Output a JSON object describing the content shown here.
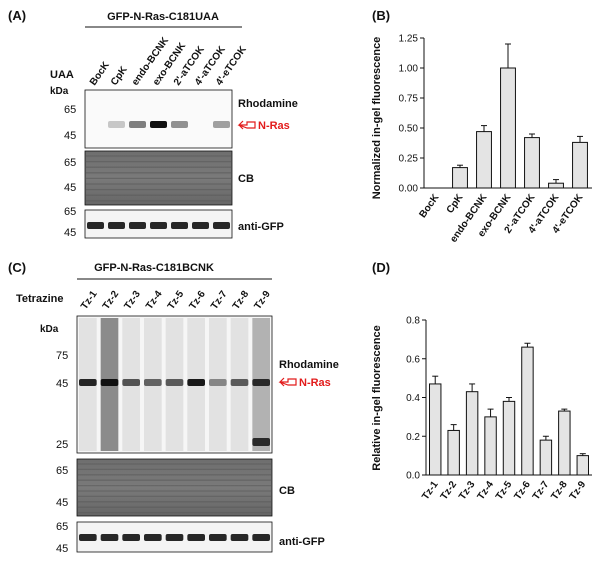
{
  "panel_a": {
    "label": "(A)",
    "title": "GFP-N-Ras-C181UAA",
    "row_label": "UAA",
    "lanes": [
      "BocK",
      "CpK",
      "endo-BCNK",
      "exo-BCNK",
      "2'-aTCOK",
      "4'-aTCOK",
      "4'-eTCOK"
    ],
    "kda_label": "kDa",
    "blot1_markers": [
      "65",
      "45"
    ],
    "blot2_markers": [
      "65",
      "45"
    ],
    "blot3_markers": [
      "65",
      "45"
    ],
    "blot1_label": "Rhodamine",
    "blot2_label": "CB",
    "blot3_label": "anti-GFP",
    "arrow_label": "N-Ras",
    "colors": {
      "arrow": "#e21b1b"
    }
  },
  "panel_b": {
    "label": "(B)",
    "ylabel": "Normalized in-gel fluorescence",
    "chart_data": {
      "type": "bar",
      "categories": [
        "BocK",
        "CpK",
        "endo-BCNK",
        "exo-BCNK",
        "2'-aTCOK",
        "4'-aTCOK",
        "4'-eTCOK"
      ],
      "values": [
        0.0,
        0.17,
        0.47,
        1.0,
        0.42,
        0.04,
        0.38
      ],
      "errors": [
        0.0,
        0.02,
        0.05,
        0.2,
        0.03,
        0.03,
        0.05
      ],
      "ylim": [
        0,
        1.25
      ],
      "yticks": [
        "0.00",
        "0.25",
        "0.50",
        "0.75",
        "1.00",
        "1.25"
      ]
    }
  },
  "panel_c": {
    "label": "(C)",
    "title": "GFP-N-Ras-C181BCNK",
    "row_label": "Tetrazine",
    "lanes": [
      "Tz-1",
      "Tz-2",
      "Tz-3",
      "Tz-4",
      "Tz-5",
      "Tz-6",
      "Tz-7",
      "Tz-8",
      "Tz-9"
    ],
    "kda_label": "kDa",
    "blot1_markers": [
      "75",
      "45",
      "25"
    ],
    "blot2_markers": [
      "65",
      "45"
    ],
    "blot3_markers": [
      "65",
      "45"
    ],
    "blot1_label": "Rhodamine",
    "blot2_label": "CB",
    "blot3_label": "anti-GFP",
    "arrow_label": "N-Ras"
  },
  "panel_d": {
    "label": "(D)",
    "ylabel": "Relative in-gel fluorescence",
    "chart_data": {
      "type": "bar",
      "categories": [
        "Tz-1",
        "Tz-2",
        "Tz-3",
        "Tz-4",
        "Tz-5",
        "Tz-6",
        "Tz-7",
        "Tz-8",
        "Tz-9"
      ],
      "values": [
        0.47,
        0.23,
        0.43,
        0.3,
        0.38,
        0.66,
        0.18,
        0.33,
        0.1
      ],
      "errors": [
        0.04,
        0.03,
        0.04,
        0.04,
        0.02,
        0.02,
        0.02,
        0.01,
        0.01
      ],
      "ylim": [
        0,
        0.8
      ],
      "yticks": [
        "0.0",
        "0.2",
        "0.4",
        "0.6",
        "0.8"
      ]
    }
  }
}
